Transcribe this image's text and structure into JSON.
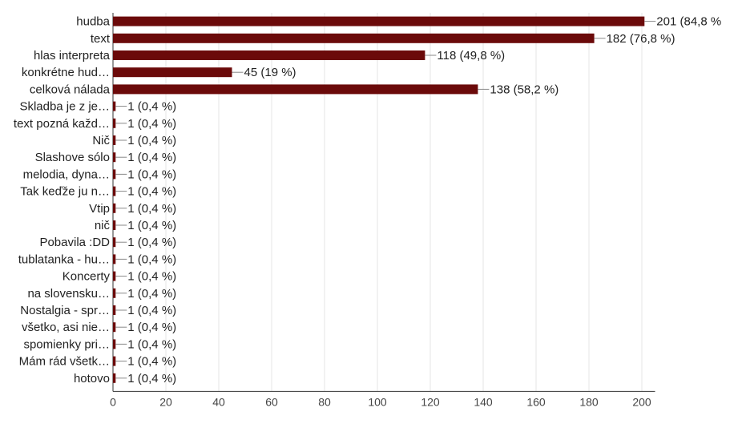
{
  "chart_data": {
    "type": "bar",
    "orientation": "horizontal",
    "bar_color": "#6b0a0a",
    "categories": [
      "hudba",
      "text",
      "hlas interpreta",
      "konkrétne hud…",
      "celková nálada",
      "Skladba je z je…",
      "text pozná každ…",
      "Nič",
      "Slashove sólo",
      "melodia, dyna…",
      "Tak keďže ju n…",
      "Vtip",
      "nič",
      "Pobavila :DD",
      "tublatanka - hu…",
      "Koncerty",
      "na slovensku…",
      "Nostalgia - spr…",
      "všetko, asi nie…",
      "spomienky pri…",
      "Mám rád všetk…",
      "hotovo"
    ],
    "values": [
      201,
      182,
      118,
      45,
      138,
      1,
      1,
      1,
      1,
      1,
      1,
      1,
      1,
      1,
      1,
      1,
      1,
      1,
      1,
      1,
      1,
      1
    ],
    "value_labels": [
      "201 (84,8 %",
      "182 (76,8 %)",
      "118 (49,8 %)",
      "45 (19 %)",
      "138 (58,2 %)",
      "1 (0,4 %)",
      "1 (0,4 %)",
      "1 (0,4 %)",
      "1 (0,4 %)",
      "1 (0,4 %)",
      "1 (0,4 %)",
      "1 (0,4 %)",
      "1 (0,4 %)",
      "1 (0,4 %)",
      "1 (0,4 %)",
      "1 (0,4 %)",
      "1 (0,4 %)",
      "1 (0,4 %)",
      "1 (0,4 %)",
      "1 (0,4 %)",
      "1 (0,4 %)",
      "1 (0,4 %)"
    ],
    "xlim": [
      0,
      205
    ],
    "xticks": [
      0,
      20,
      40,
      60,
      80,
      100,
      120,
      140,
      160,
      180,
      200
    ],
    "grid": true
  }
}
